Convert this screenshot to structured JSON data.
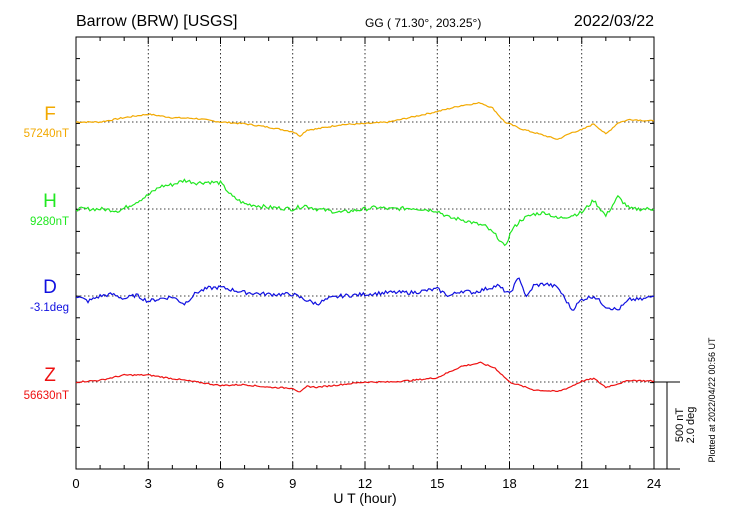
{
  "header": {
    "station": "Barrow (BRW)  [USGS]",
    "coords": "GG ( 71.30°, 203.25°)",
    "date": "2022/03/22"
  },
  "side_note": "Plotted at 2022/04/22 00:56 UT",
  "chart_data": {
    "type": "line",
    "xlabel": "U T (hour)",
    "xlim": [
      0,
      24
    ],
    "xticks": [
      0,
      3,
      6,
      9,
      12,
      15,
      18,
      21,
      24
    ],
    "scale_bar": [
      "500 nT",
      "2.0 deg"
    ],
    "series": [
      {
        "name": "F",
        "baseline_label": "57240nT",
        "color": "#f2a900",
        "points": [
          [
            0,
            0
          ],
          [
            1,
            0
          ],
          [
            2,
            25
          ],
          [
            3,
            45
          ],
          [
            4,
            25
          ],
          [
            5,
            20
          ],
          [
            6,
            0
          ],
          [
            7,
            -10
          ],
          [
            8,
            -30
          ],
          [
            9,
            -55
          ],
          [
            9.3,
            -80
          ],
          [
            9.6,
            -45
          ],
          [
            10,
            -40
          ],
          [
            11,
            -15
          ],
          [
            12,
            -10
          ],
          [
            13,
            0
          ],
          [
            14,
            30
          ],
          [
            15,
            60
          ],
          [
            16,
            95
          ],
          [
            16.8,
            110
          ],
          [
            17.3,
            80
          ],
          [
            17.8,
            0
          ],
          [
            18.5,
            -40
          ],
          [
            19.5,
            -80
          ],
          [
            20,
            -100
          ],
          [
            20.6,
            -60
          ],
          [
            21,
            -45
          ],
          [
            21.5,
            -10
          ],
          [
            22,
            -70
          ],
          [
            22.5,
            -5
          ],
          [
            23,
            15
          ],
          [
            24,
            5
          ]
        ]
      },
      {
        "name": "H",
        "baseline_label": "9280nT",
        "color": "#21e821",
        "points": [
          [
            0,
            0
          ],
          [
            1,
            0
          ],
          [
            1.8,
            -10
          ],
          [
            2.5,
            40
          ],
          [
            3,
            80
          ],
          [
            3.5,
            130
          ],
          [
            4,
            140
          ],
          [
            4.5,
            165
          ],
          [
            5,
            150
          ],
          [
            5.5,
            155
          ],
          [
            6,
            150
          ],
          [
            6.5,
            70
          ],
          [
            7,
            30
          ],
          [
            8,
            10
          ],
          [
            9,
            0
          ],
          [
            9.5,
            20
          ],
          [
            10,
            0
          ],
          [
            11,
            -20
          ],
          [
            11.5,
            -10
          ],
          [
            12,
            0
          ],
          [
            12.5,
            10
          ],
          [
            13,
            0
          ],
          [
            14,
            5
          ],
          [
            15,
            -10
          ],
          [
            15.5,
            -50
          ],
          [
            16,
            -60
          ],
          [
            16.5,
            -80
          ],
          [
            17,
            -100
          ],
          [
            17.5,
            -160
          ],
          [
            17.8,
            -220
          ],
          [
            18.1,
            -120
          ],
          [
            18.5,
            -60
          ],
          [
            19,
            -30
          ],
          [
            19.5,
            -20
          ],
          [
            20,
            -55
          ],
          [
            20.5,
            -40
          ],
          [
            21,
            -20
          ],
          [
            21.5,
            50
          ],
          [
            22,
            -40
          ],
          [
            22.5,
            70
          ],
          [
            23,
            0
          ],
          [
            24,
            0
          ]
        ]
      },
      {
        "name": "D",
        "baseline_label": "-3.1deg",
        "color": "#1010e0",
        "points": [
          [
            0,
            0
          ],
          [
            0.5,
            -30
          ],
          [
            1,
            0
          ],
          [
            1.5,
            10
          ],
          [
            2,
            -15
          ],
          [
            2.5,
            5
          ],
          [
            3,
            -30
          ],
          [
            3.5,
            -15
          ],
          [
            4,
            -5
          ],
          [
            4.5,
            -45
          ],
          [
            5,
            20
          ],
          [
            5.5,
            45
          ],
          [
            6,
            50
          ],
          [
            7,
            20
          ],
          [
            8,
            10
          ],
          [
            9,
            10
          ],
          [
            9.5,
            -20
          ],
          [
            10,
            -45
          ],
          [
            10.5,
            -15
          ],
          [
            11,
            0
          ],
          [
            12,
            10
          ],
          [
            13,
            20
          ],
          [
            14,
            20
          ],
          [
            15,
            40
          ],
          [
            15.5,
            0
          ],
          [
            16,
            30
          ],
          [
            16.5,
            20
          ],
          [
            17,
            40
          ],
          [
            17.5,
            60
          ],
          [
            18,
            10
          ],
          [
            18.4,
            110
          ],
          [
            18.7,
            -10
          ],
          [
            19,
            60
          ],
          [
            19.5,
            70
          ],
          [
            20,
            50
          ],
          [
            20.6,
            -80
          ],
          [
            21,
            -20
          ],
          [
            21.5,
            0
          ],
          [
            22,
            -60
          ],
          [
            22.5,
            -80
          ],
          [
            23,
            -20
          ],
          [
            23.5,
            -20
          ],
          [
            24,
            0
          ]
        ]
      },
      {
        "name": "Z",
        "baseline_label": "56630nT",
        "color": "#ee1111",
        "points": [
          [
            0,
            0
          ],
          [
            1,
            10
          ],
          [
            2,
            40
          ],
          [
            3,
            40
          ],
          [
            4,
            20
          ],
          [
            5,
            0
          ],
          [
            6,
            -20
          ],
          [
            7,
            -15
          ],
          [
            8,
            -30
          ],
          [
            9,
            -35
          ],
          [
            9.3,
            -60
          ],
          [
            9.6,
            -25
          ],
          [
            10,
            -30
          ],
          [
            11,
            -15
          ],
          [
            12,
            0
          ],
          [
            13,
            0
          ],
          [
            14,
            10
          ],
          [
            15,
            25
          ],
          [
            16,
            90
          ],
          [
            16.8,
            110
          ],
          [
            17.4,
            80
          ],
          [
            18,
            0
          ],
          [
            19,
            -45
          ],
          [
            20,
            -55
          ],
          [
            20.5,
            -30
          ],
          [
            21,
            5
          ],
          [
            21.5,
            20
          ],
          [
            22,
            -30
          ],
          [
            22.5,
            -10
          ],
          [
            23,
            10
          ],
          [
            24,
            5
          ]
        ]
      }
    ]
  }
}
